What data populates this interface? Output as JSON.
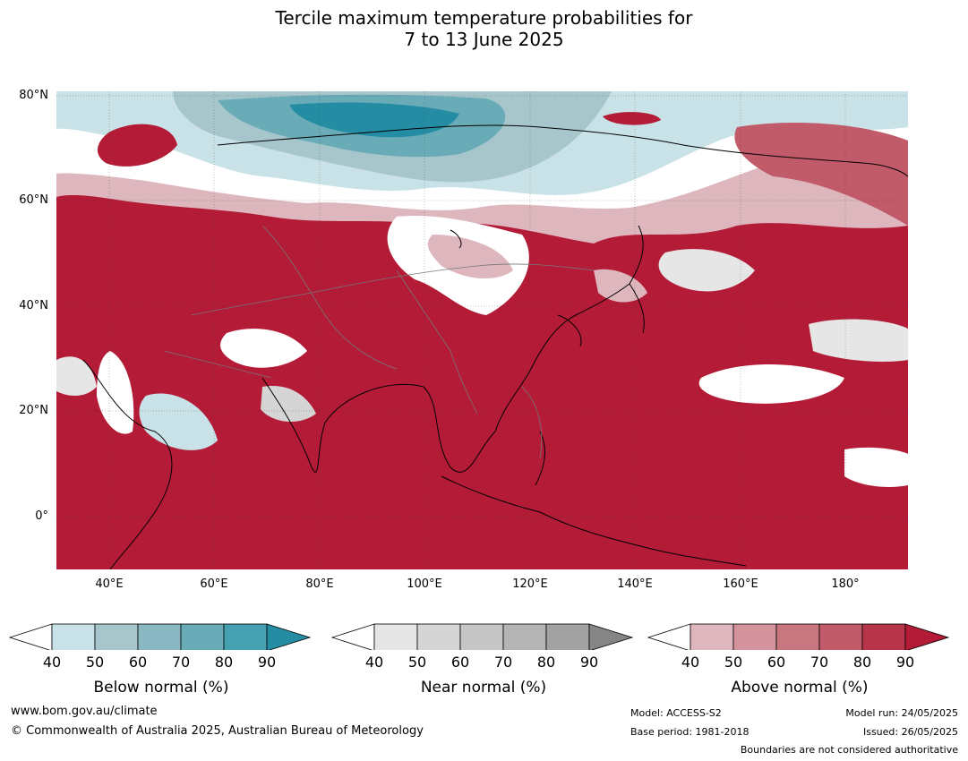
{
  "title_line1": "Tercile maximum temperature probabilities for",
  "title_line2": "7 to 13 June 2025",
  "map": {
    "lat_labels": [
      "80°N",
      "60°N",
      "40°N",
      "20°N",
      "0°"
    ],
    "lon_labels": [
      "40°E",
      "60°E",
      "80°E",
      "100°E",
      "120°E",
      "140°E",
      "160°E",
      "180°"
    ],
    "extent": {
      "lon_min": 30,
      "lon_max": 192,
      "lat_min": -10,
      "lat_max": 81
    },
    "dominant_category": "above normal"
  },
  "colorbars": [
    {
      "ticks": [
        "40",
        "50",
        "60",
        "70",
        "80",
        "90"
      ],
      "label": "Below normal (%)",
      "colors": [
        "#ffffff",
        "#c9e2e8",
        "#a7c6cc",
        "#89b8c2",
        "#6aabb8",
        "#45a0b0",
        "#258da3"
      ]
    },
    {
      "ticks": [
        "40",
        "50",
        "60",
        "70",
        "80",
        "90"
      ],
      "label": "Near normal (%)",
      "colors": [
        "#ffffff",
        "#e6e6e6",
        "#d5d5d5",
        "#c6c6c6",
        "#b4b4b4",
        "#a2a2a2",
        "#858585"
      ]
    },
    {
      "ticks": [
        "40",
        "50",
        "60",
        "70",
        "80",
        "90"
      ],
      "label": "Above normal (%)",
      "colors": [
        "#ffffff",
        "#deb7be",
        "#d3949d",
        "#c87781",
        "#c15b69",
        "#b7354b",
        "#b31b37"
      ]
    }
  ],
  "footer": {
    "website": "www.bom.gov.au/climate",
    "copyright": "© Commonwealth of Australia 2025, Australian Bureau of Meteorology",
    "model": "Model: ACCESS-S2",
    "base_period": "Base period: 1981-2018",
    "model_run": "Model run: 24/05/2025",
    "issued": "Issued: 26/05/2025",
    "disclaimer": "Boundaries are not considered authoritative"
  }
}
